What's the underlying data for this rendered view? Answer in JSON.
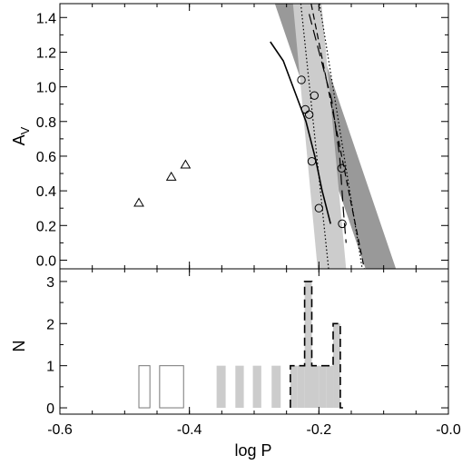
{
  "chart_data": [
    {
      "panel": "top",
      "type": "scatter",
      "xlabel": "",
      "ylabel": "A",
      "ylabel_subscript": "V",
      "xlim": [
        -0.6,
        0.0
      ],
      "ylim": [
        -0.05,
        1.48
      ],
      "yticks": [
        0.0,
        0.2,
        0.4,
        0.6,
        0.8,
        1.0,
        1.2,
        1.4
      ],
      "ytick_labels": [
        "0.0",
        "0.2",
        "0.4",
        "0.6",
        "0.8",
        "1.0",
        "1.2",
        "1.4"
      ],
      "colors": {
        "band_dark": "#999999",
        "band_light": "#cccccc",
        "line": "#000000"
      },
      "bands": [
        {
          "name": "",
          "color": "band_dark",
          "polygon": [
            [
              -0.268,
              1.48
            ],
            [
              -0.22,
              1.48
            ],
            [
              -0.081,
              -0.05
            ],
            [
              -0.128,
              -0.05
            ]
          ]
        },
        {
          "name": "",
          "color": "band_light",
          "polygon": [
            [
              -0.24,
              1.48
            ],
            [
              -0.196,
              1.48
            ],
            [
              -0.158,
              -0.05
            ],
            [
              -0.202,
              -0.05
            ]
          ]
        }
      ],
      "lines": [
        {
          "style": "dashed",
          "points": [
            [
              -0.212,
              1.48
            ],
            [
              -0.13,
              -0.05
            ]
          ]
        },
        {
          "style": "dotted",
          "points": [
            [
              -0.228,
              1.48
            ],
            [
              -0.185,
              -0.05
            ]
          ]
        },
        {
          "style": "dotted",
          "points": [
            [
              -0.199,
              1.48
            ],
            [
              -0.133,
              -0.05
            ]
          ]
        },
        {
          "style": "long-dash",
          "points": [
            [
              -0.215,
              1.42
            ],
            [
              -0.18,
              0.92
            ],
            [
              -0.168,
              0.6
            ],
            [
              -0.162,
              0.28
            ],
            [
              -0.158,
              0.1
            ]
          ]
        },
        {
          "style": "solid",
          "points": [
            [
              -0.275,
              1.26
            ],
            [
              -0.255,
              1.15
            ],
            [
              -0.24,
              1.0
            ],
            [
              -0.22,
              0.8
            ],
            [
              -0.205,
              0.58
            ],
            [
              -0.195,
              0.4
            ],
            [
              -0.182,
              0.21
            ]
          ]
        }
      ],
      "series": [
        {
          "marker": "circle",
          "x": [
            -0.227,
            -0.221,
            -0.215,
            -0.211,
            -0.207,
            -0.2,
            -0.165,
            -0.164
          ],
          "y": [
            1.04,
            0.87,
            0.84,
            0.57,
            0.95,
            0.3,
            0.53,
            0.21
          ]
        },
        {
          "marker": "triangle",
          "x": [
            -0.478,
            -0.428,
            -0.406
          ],
          "y": [
            0.33,
            0.48,
            0.55
          ]
        }
      ]
    },
    {
      "panel": "bottom",
      "type": "bar",
      "xlabel": "log P",
      "ylabel": "N",
      "xlim": [
        -0.6,
        0.0
      ],
      "ylim": [
        -0.15,
        3.3
      ],
      "xticks": [
        -0.6,
        -0.4,
        -0.2,
        0.0
      ],
      "xtick_labels": [
        "-0.6",
        "-0.4",
        "-0.2",
        "-0.0"
      ],
      "yticks": [
        0,
        1,
        2,
        3
      ],
      "ytick_labels": [
        "0",
        "1",
        "2",
        "3"
      ],
      "colors": {
        "open_edge": "#777777",
        "gray_fill": "#cccccc",
        "dash_edge": "#000000"
      },
      "bin_width": 0.011,
      "open_bars": [
        {
          "x0": -0.478,
          "x1": -0.461,
          "count": 1
        },
        {
          "x0": -0.446,
          "x1": -0.409,
          "count": 1
        }
      ],
      "gray_bars": [
        {
          "x0": -0.358,
          "x1": -0.344,
          "count": 1
        },
        {
          "x0": -0.329,
          "x1": -0.316,
          "count": 1
        },
        {
          "x0": -0.302,
          "x1": -0.289,
          "count": 1
        },
        {
          "x0": -0.273,
          "x1": -0.259,
          "count": 1
        }
      ],
      "dashed_hist": {
        "edges": [
          -0.244,
          -0.233,
          -0.222,
          -0.211,
          -0.2,
          -0.189,
          -0.178,
          -0.167,
          -0.156
        ],
        "counts": [
          1,
          1,
          3,
          1,
          1,
          1,
          2,
          0
        ]
      }
    }
  ]
}
